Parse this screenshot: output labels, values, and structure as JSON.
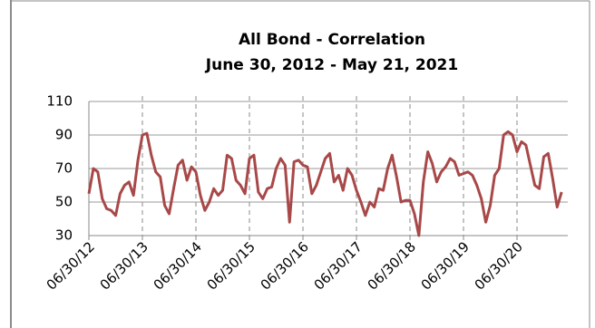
{
  "chart_data": {
    "type": "line",
    "title": "All Bond - Correlation",
    "subtitle": "June 30, 2012 - May 21, 2021",
    "categories": [
      "06/30/12",
      null,
      null,
      null,
      null,
      null,
      null,
      null,
      null,
      null,
      null,
      null,
      "06/30/13",
      null,
      null,
      null,
      null,
      null,
      null,
      null,
      null,
      null,
      null,
      null,
      "06/30/14",
      null,
      null,
      null,
      null,
      null,
      null,
      null,
      null,
      null,
      null,
      null,
      "06/30/15",
      null,
      null,
      null,
      null,
      null,
      null,
      null,
      null,
      null,
      null,
      null,
      "06/30/16",
      null,
      null,
      null,
      null,
      null,
      null,
      null,
      null,
      null,
      null,
      null,
      "06/30/17",
      null,
      null,
      null,
      null,
      null,
      null,
      null,
      null,
      null,
      null,
      null,
      "06/30/18",
      null,
      null,
      null,
      null,
      null,
      null,
      null,
      null,
      null,
      null,
      null,
      "06/30/19",
      null,
      null,
      null,
      null,
      null,
      null,
      null,
      null,
      null,
      null,
      null,
      "06/30/20",
      null,
      null,
      null,
      null,
      null,
      null,
      null,
      null,
      null,
      null
    ],
    "series": [
      {
        "color": "#a84848",
        "values": [
          55,
          70,
          68,
          52,
          46,
          45,
          42,
          55,
          60,
          62,
          54,
          75,
          90,
          91,
          78,
          68,
          65,
          48,
          43,
          58,
          72,
          75,
          63,
          71,
          68,
          54,
          45,
          50,
          58,
          54,
          57,
          78,
          76,
          63,
          60,
          55,
          76,
          78,
          56,
          52,
          58,
          59,
          70,
          76,
          72,
          38,
          74,
          75,
          72,
          71,
          55,
          60,
          68,
          76,
          79,
          62,
          66,
          57,
          70,
          66,
          57,
          50,
          42,
          50,
          47,
          58,
          57,
          70,
          78,
          65,
          50,
          51,
          51,
          43,
          30,
          62,
          80,
          73,
          62,
          68,
          71,
          76,
          74,
          66,
          67,
          68,
          66,
          60,
          52,
          38,
          48,
          66,
          70,
          90,
          92,
          90,
          80,
          86,
          84,
          72,
          60,
          58,
          77,
          79,
          64,
          47,
          56
        ]
      }
    ],
    "ylim": [
      30,
      110
    ],
    "yticks": [
      30,
      50,
      70,
      90,
      110
    ],
    "grid": true
  }
}
